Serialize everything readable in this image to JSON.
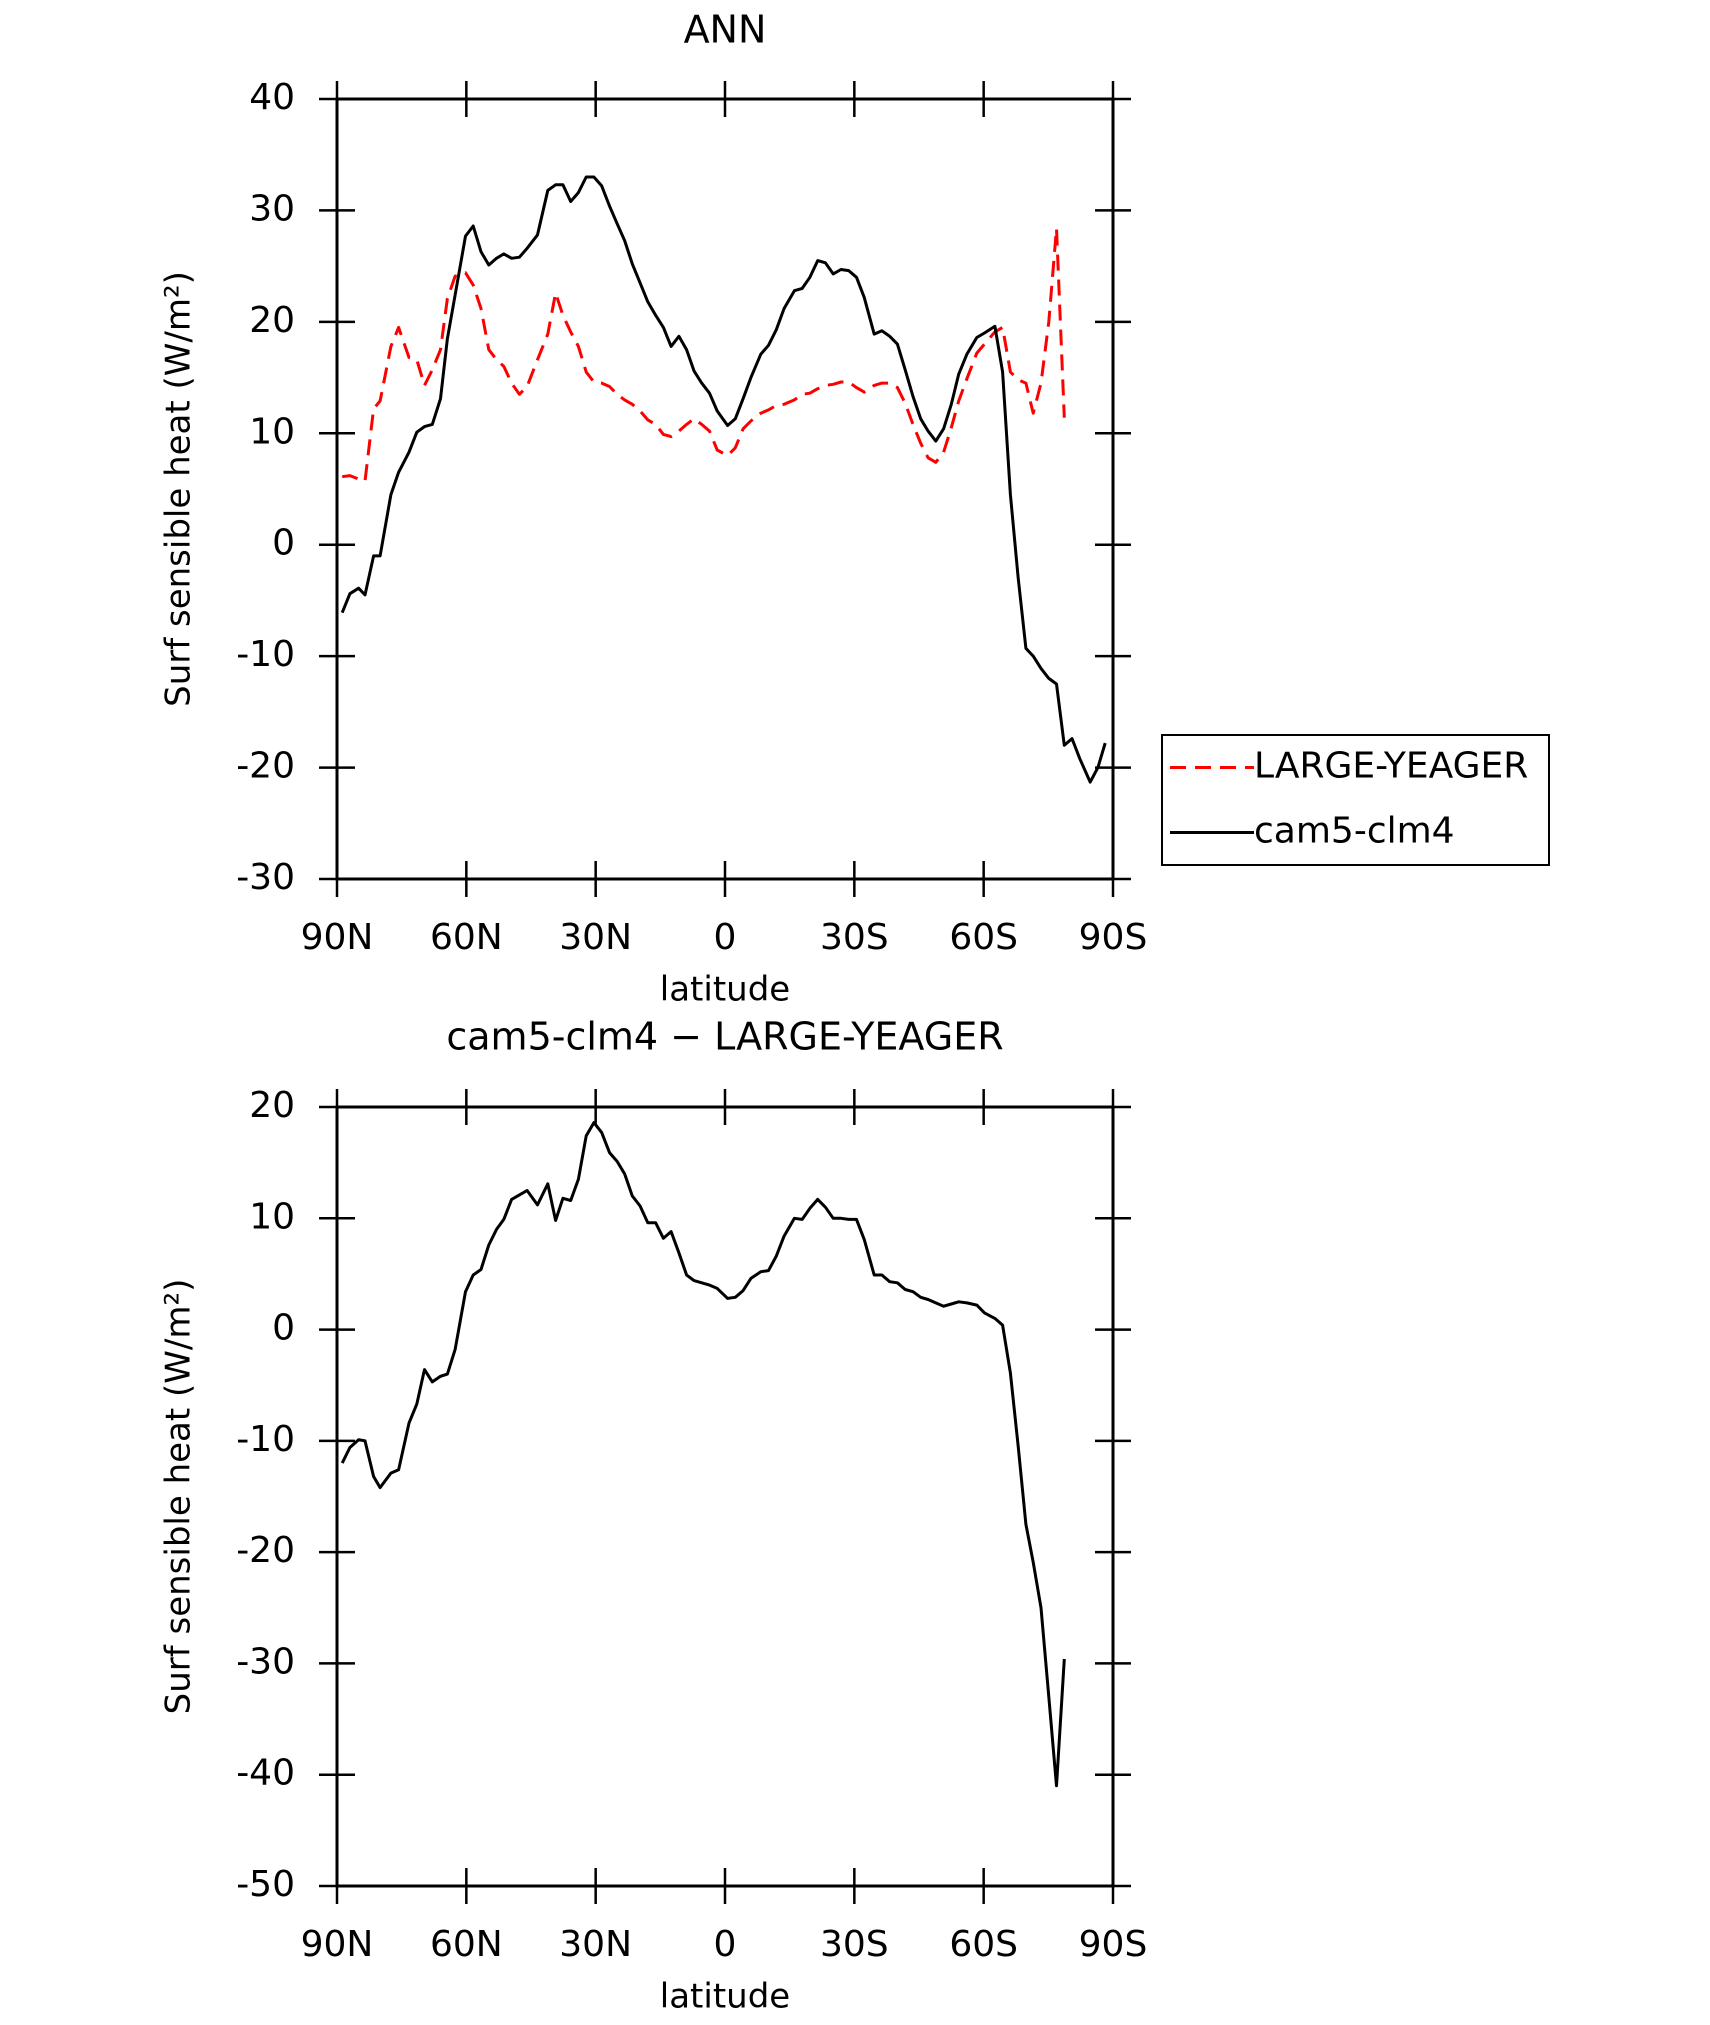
{
  "chart_data": [
    {
      "type": "line",
      "title": "ANN",
      "xlabel": "latitude",
      "ylabel": "Surf sensible heat (W/m²)",
      "x": [
        88.8,
        87,
        85,
        83.5,
        81.5,
        80,
        77.5,
        75.7,
        73.3,
        71.5,
        69.7,
        67.9,
        66,
        64.4,
        62.6,
        60.2,
        58.4,
        56.6,
        54.8,
        53,
        51.3,
        49.5,
        47.7,
        45.9,
        43.5,
        41.1,
        39.3,
        37.6,
        35.8,
        34,
        32.2,
        30.4,
        28.6,
        26.8,
        25,
        23.3,
        21.5,
        19.7,
        17.9,
        16.1,
        14.3,
        12.5,
        10.7,
        8.9,
        7.2,
        5.4,
        3.6,
        1.8,
        -0.6,
        -2.4,
        -4.2,
        -6,
        -8.3,
        -10.1,
        -11.9,
        -13.7,
        -16.1,
        -17.9,
        -19.7,
        -21.5,
        -23.3,
        -25.1,
        -26.9,
        -28.7,
        -30.5,
        -32.3,
        -34.6,
        -36.4,
        -38.2,
        -40,
        -41.8,
        -43.6,
        -45.4,
        -47.1,
        -48.9,
        -50.7,
        -52.5,
        -54.2,
        -56.1,
        -58.4,
        -60.2,
        -62.6,
        -64.4,
        -66.2,
        -68,
        -69.8,
        -71.5,
        -73.3,
        -75.1,
        -76.9,
        -78.7,
        -80.5,
        -82.3,
        -84.7,
        -86.5,
        -88.2
      ],
      "series": [
        {
          "name": "LARGE-YEAGER",
          "color": "#ff0000",
          "line_style": "dashed",
          "values": [
            6.1,
            6.2,
            5.9,
            5.7,
            12.2,
            12.9,
            17.8,
            19.5,
            16.8,
            16.6,
            14.3,
            15.7,
            17.5,
            22.1,
            24.1,
            24.4,
            23.3,
            21.2,
            17.5,
            16.6,
            16.0,
            14.5,
            13.5,
            14.2,
            16.6,
            18.9,
            22.6,
            20.6,
            19.1,
            17.8,
            15.5,
            14.6,
            14.5,
            14.2,
            13.5,
            13.0,
            12.6,
            12.0,
            11.2,
            10.8,
            9.9,
            9.7,
            10.2,
            10.8,
            11.3,
            10.8,
            10.2,
            8.5,
            8.0,
            8.7,
            10.4,
            11.1,
            11.8,
            12.1,
            12.5,
            12.6,
            13.0,
            13.5,
            13.6,
            14.0,
            14.3,
            14.4,
            14.6,
            14.6,
            14.1,
            13.7,
            14.3,
            14.5,
            14.5,
            14.1,
            12.7,
            10.8,
            9.1,
            7.8,
            7.4,
            8.3,
            10.5,
            12.9,
            14.9,
            17.2,
            18.0,
            19.1,
            19.5,
            15.5,
            14.8,
            14.5,
            11.8,
            14.5,
            20.0,
            28.4,
            11.4,
            null,
            null,
            null,
            null,
            null
          ]
        },
        {
          "name": "cam5-clm4",
          "color": "#000000",
          "line_style": "solid",
          "values": [
            -6.1,
            -4.4,
            -3.9,
            -4.5,
            -1.0,
            -1.0,
            4.5,
            6.5,
            8.3,
            10.1,
            10.6,
            10.8,
            13.1,
            18.5,
            22.4,
            27.7,
            28.6,
            26.3,
            25.1,
            25.7,
            26.1,
            25.7,
            25.8,
            26.6,
            27.8,
            31.8,
            32.3,
            32.3,
            30.8,
            31.6,
            33.0,
            33.0,
            32.2,
            30.4,
            28.8,
            27.3,
            25.2,
            23.5,
            21.8,
            20.6,
            19.5,
            17.8,
            18.7,
            17.5,
            15.6,
            14.5,
            13.6,
            12.0,
            10.7,
            11.3,
            13.1,
            15.0,
            17.1,
            17.9,
            19.3,
            21.2,
            22.8,
            23.0,
            24.0,
            25.5,
            25.3,
            24.3,
            24.7,
            24.6,
            24.0,
            22.2,
            18.9,
            19.2,
            18.7,
            18.0,
            15.7,
            13.3,
            11.3,
            10.2,
            9.3,
            10.4,
            12.6,
            15.3,
            17.1,
            18.6,
            19.0,
            19.6,
            15.5,
            4.5,
            -3.0,
            -9.3,
            -10.0,
            -11.1,
            -12.0,
            -12.5,
            -18.0,
            -17.4,
            -19.2,
            -21.3,
            -20.0,
            -17.8
          ]
        }
      ],
      "xlim": [
        90,
        -90
      ],
      "xticks": [
        {
          "value": 90,
          "label": "90N"
        },
        {
          "value": 60,
          "label": "60N"
        },
        {
          "value": 30,
          "label": "30N"
        },
        0,
        {
          "value": -30,
          "label": "30S"
        },
        {
          "value": -60,
          "label": "60S"
        },
        {
          "value": -90,
          "label": "90S"
        }
      ],
      "ylim": [
        -30,
        40
      ],
      "yticks": [
        -30,
        -20,
        -10,
        0,
        10,
        20,
        30,
        40
      ],
      "legend": "right"
    },
    {
      "type": "line",
      "title": "cam5-clm4 − LARGE-YEAGER",
      "xlabel": "latitude",
      "ylabel": "Surf sensible heat (W/m²)",
      "x": [
        88.8,
        87,
        85,
        83.5,
        81.5,
        80,
        77.5,
        75.7,
        73.3,
        71.5,
        69.7,
        67.9,
        66,
        64.4,
        62.6,
        60.2,
        58.4,
        56.6,
        54.8,
        53,
        51.3,
        49.5,
        47.7,
        45.9,
        43.5,
        41.1,
        39.3,
        37.6,
        35.8,
        34,
        32.2,
        30.4,
        28.6,
        26.8,
        25,
        23.3,
        21.5,
        19.7,
        17.9,
        16.1,
        14.3,
        12.5,
        10.7,
        8.9,
        7.2,
        5.4,
        3.6,
        1.8,
        -0.6,
        -2.4,
        -4.2,
        -6,
        -8.3,
        -10.1,
        -11.9,
        -13.7,
        -16.1,
        -17.9,
        -19.7,
        -21.5,
        -23.3,
        -25.1,
        -26.9,
        -28.7,
        -30.5,
        -32.3,
        -34.6,
        -36.4,
        -38.2,
        -40,
        -41.8,
        -43.6,
        -45.4,
        -47.1,
        -48.9,
        -50.7,
        -52.5,
        -54.2,
        -56.1,
        -58.4,
        -60.2,
        -62.6,
        -64.4,
        -66.2,
        -68,
        -69.8,
        -71.5,
        -73.3,
        -75.1,
        -76.9,
        -78.7,
        -80.5,
        -82.3,
        -84.7,
        -86.5,
        -88.2
      ],
      "color": "#000000",
      "values": [
        -12.0,
        -10.6,
        -9.9,
        -10.0,
        -13.2,
        -14.2,
        -12.9,
        -12.6,
        -8.4,
        -6.7,
        -3.6,
        -4.7,
        -4.2,
        -4.0,
        -1.8,
        3.4,
        4.9,
        5.4,
        7.6,
        9.0,
        9.9,
        11.7,
        12.1,
        12.5,
        11.2,
        13.1,
        9.8,
        11.8,
        11.6,
        13.5,
        17.4,
        18.6,
        17.7,
        15.9,
        15.1,
        14.0,
        12.0,
        11.1,
        9.6,
        9.6,
        8.2,
        8.8,
        6.9,
        4.9,
        4.4,
        4.2,
        4.0,
        3.7,
        2.8,
        2.9,
        3.5,
        4.6,
        5.2,
        5.3,
        6.6,
        8.4,
        10.0,
        9.9,
        10.9,
        11.7,
        11.0,
        10.0,
        10.0,
        9.9,
        9.9,
        8.1,
        4.9,
        4.9,
        4.3,
        4.2,
        3.6,
        3.4,
        2.9,
        2.7,
        2.4,
        2.1,
        2.3,
        2.5,
        2.4,
        2.2,
        1.5,
        1.0,
        0.4,
        -3.9,
        -10.5,
        -17.5,
        -20.9,
        -25.0,
        -33.0,
        -41.0,
        -29.6,
        null,
        null,
        null,
        null,
        null
      ],
      "xlim": [
        90,
        -90
      ],
      "xticks": [
        {
          "value": 90,
          "label": "90N"
        },
        {
          "value": 60,
          "label": "60N"
        },
        {
          "value": 30,
          "label": "30N"
        },
        0,
        {
          "value": -30,
          "label": "30S"
        },
        {
          "value": -60,
          "label": "60S"
        },
        {
          "value": -90,
          "label": "90S"
        }
      ],
      "ylim": [
        -50,
        20
      ],
      "yticks": [
        -50,
        -40,
        -30,
        -20,
        -10,
        0,
        10,
        20
      ]
    }
  ]
}
